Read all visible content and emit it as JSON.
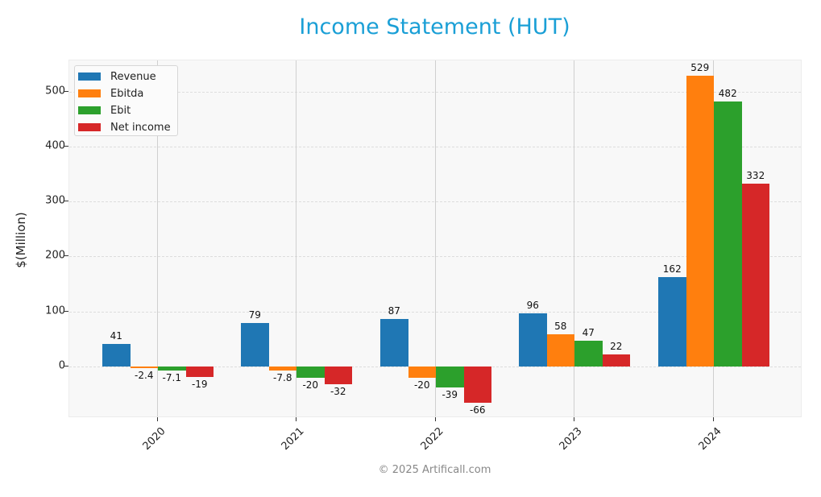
{
  "title": "Income Statement (HUT)",
  "footer": "© 2025 Artificall.com",
  "colors": {
    "title": "#1a9fd6",
    "Revenue": "#1f77b4",
    "Ebitda": "#ff7f0e",
    "Ebit": "#2ca02c",
    "Net income": "#d62728"
  },
  "legend": [
    "Revenue",
    "Ebitda",
    "Ebit",
    "Net income"
  ],
  "yaxis": {
    "label": "$(Million)",
    "ticks": [
      "500",
      "400",
      "300",
      "200",
      "100",
      "0"
    ]
  },
  "xaxis": {
    "ticks": [
      "2020",
      "2021",
      "2022",
      "2023",
      "2024"
    ]
  },
  "labels": {
    "2020": [
      "41",
      "-2.4",
      "-7.1",
      "-19"
    ],
    "2021": [
      "79",
      "-7.8",
      "-20",
      "-32"
    ],
    "2022": [
      "87",
      "-20",
      "-39",
      "-66"
    ],
    "2023": [
      "96",
      "58",
      "47",
      "22"
    ],
    "2024": [
      "162",
      "529",
      "482",
      "332"
    ]
  },
  "chart_data": {
    "type": "bar",
    "title": "Income Statement (HUT)",
    "xlabel": "",
    "ylabel": "$(Million)",
    "categories": [
      "2020",
      "2021",
      "2022",
      "2023",
      "2024"
    ],
    "series": [
      {
        "name": "Revenue",
        "values": [
          41,
          79,
          87,
          96,
          162
        ]
      },
      {
        "name": "Ebitda",
        "values": [
          -2.4,
          -7.8,
          -20,
          58,
          529
        ]
      },
      {
        "name": "Ebit",
        "values": [
          -7.1,
          -20,
          -39,
          47,
          482
        ]
      },
      {
        "name": "Net income",
        "values": [
          -19,
          -32,
          -66,
          22,
          332
        ]
      }
    ],
    "ylim": [
      -94,
      557
    ],
    "yticks": [
      0,
      100,
      200,
      300,
      400,
      500
    ],
    "grid": true,
    "legend_position": "upper left"
  }
}
